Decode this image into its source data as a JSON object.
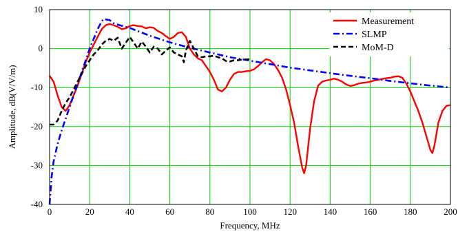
{
  "chart_data": {
    "type": "line",
    "xlabel": "Frequency,  MHz",
    "ylabel": "Amplitude, dB(V/V/m)",
    "xlim": [
      0,
      200
    ],
    "ylim": [
      -40,
      10
    ],
    "xticks": [
      "0",
      "20",
      "40",
      "60",
      "80",
      "100",
      "120",
      "140",
      "160",
      "180",
      "200"
    ],
    "yticks": [
      "10",
      "0",
      "-10",
      "-20",
      "-30",
      "-40"
    ],
    "grid": true,
    "grid_color": "#00cc00",
    "legend_position": "top-right",
    "series": [
      {
        "name": "Measurement",
        "color": "#ff0000",
        "style": "solid",
        "x": [
          0,
          2,
          4,
          6,
          8,
          10,
          12,
          14,
          16,
          18,
          20,
          22,
          24,
          26,
          28,
          30,
          32,
          34,
          36,
          38,
          40,
          42,
          44,
          46,
          48,
          50,
          52,
          54,
          56,
          58,
          60,
          62,
          64,
          66,
          68,
          70,
          72,
          74,
          76,
          78,
          80,
          82,
          84,
          86,
          88,
          90,
          92,
          94,
          96,
          98,
          100,
          102,
          104,
          106,
          108,
          110,
          112,
          114,
          116,
          118,
          120,
          122,
          124,
          126,
          127,
          128,
          130,
          132,
          134,
          136,
          138,
          140,
          142,
          144,
          146,
          148,
          150,
          152,
          154,
          156,
          158,
          160,
          162,
          164,
          166,
          168,
          170,
          172,
          174,
          176,
          178,
          180,
          182,
          184,
          186,
          188,
          190,
          191,
          192,
          194,
          196,
          198,
          200
        ],
        "values": [
          -7,
          -8.5,
          -12,
          -15,
          -16,
          -14.5,
          -12,
          -9.5,
          -6.5,
          -3.5,
          -1,
          1,
          3,
          5,
          6,
          6.3,
          6,
          5.6,
          5,
          5.2,
          5.8,
          6,
          5.8,
          5.7,
          5.2,
          5.5,
          5.3,
          4.5,
          4,
          3.2,
          2.5,
          3,
          4,
          4.2,
          3,
          0,
          -1.5,
          -2.5,
          -3,
          -4.5,
          -6,
          -8,
          -10.5,
          -11,
          -10,
          -8,
          -6.5,
          -6,
          -6,
          -5.8,
          -5.7,
          -5.3,
          -4.5,
          -3.5,
          -2.7,
          -3,
          -4,
          -5.5,
          -7.5,
          -10.5,
          -14.5,
          -19,
          -25,
          -30.5,
          -32,
          -30,
          -20.5,
          -13.5,
          -9.5,
          -8.5,
          -8.2,
          -8,
          -7.7,
          -8,
          -8.5,
          -9.2,
          -9.6,
          -9.4,
          -9,
          -8.8,
          -8.7,
          -8.5,
          -8.2,
          -8,
          -7.8,
          -7.6,
          -7.5,
          -7.2,
          -7.1,
          -7.5,
          -9,
          -11,
          -13.5,
          -16,
          -19,
          -22.5,
          -26,
          -26.8,
          -25,
          -19,
          -16,
          -14.7,
          -14.5
        ]
      },
      {
        "name": "SLMP",
        "color": "#0000ff",
        "style": "dashdot",
        "x": [
          0,
          1,
          2,
          4,
          6,
          8,
          10,
          12,
          14,
          16,
          18,
          20,
          22,
          24,
          26,
          27,
          28,
          30,
          32,
          35,
          40,
          50,
          60,
          70,
          80,
          90,
          100,
          110,
          120,
          130,
          140,
          150,
          160,
          170,
          180,
          190,
          200
        ],
        "values": [
          -40,
          -33,
          -29,
          -24.5,
          -21,
          -18,
          -15,
          -12,
          -9,
          -6,
          -3,
          0,
          2.5,
          5,
          7,
          7.6,
          7.5,
          7.3,
          6.5,
          6,
          5.3,
          3.3,
          1.6,
          0.2,
          -1,
          -2.2,
          -3.1,
          -4,
          -4.9,
          -5.6,
          -6.3,
          -7,
          -7.6,
          -8.3,
          -8.9,
          -9.5,
          -10
        ]
      },
      {
        "name": "MoM-D",
        "color": "#000000",
        "style": "dashed",
        "x": [
          0,
          2,
          4,
          6,
          8,
          10,
          12,
          14,
          16,
          18,
          20,
          22,
          24,
          26,
          28,
          30,
          32,
          34,
          36,
          38,
          40,
          42,
          44,
          46,
          48,
          50,
          52,
          54,
          56,
          58,
          60,
          62,
          64,
          66,
          67,
          68,
          70,
          72,
          74,
          76,
          78,
          80,
          82,
          84,
          86,
          88,
          90,
          92,
          94,
          96,
          98,
          100
        ],
        "values": [
          -19.5,
          -19.5,
          -18.5,
          -16,
          -14,
          -12.5,
          -10.5,
          -8.5,
          -6.5,
          -4.5,
          -3,
          -1.5,
          -0.5,
          1,
          2,
          2.5,
          2,
          2.8,
          0,
          1.5,
          3,
          1.5,
          0,
          1.8,
          0.5,
          -1,
          0.5,
          0,
          -1.5,
          -0.5,
          0.3,
          -1,
          -1.5,
          -2,
          -3.5,
          -0.5,
          2,
          0,
          -2,
          -2.2,
          -2,
          -2,
          -1.8,
          -2.2,
          -2.5,
          -3.2,
          -3.3,
          -3,
          -3,
          -2.8,
          -2.8,
          -2.7
        ]
      }
    ]
  }
}
